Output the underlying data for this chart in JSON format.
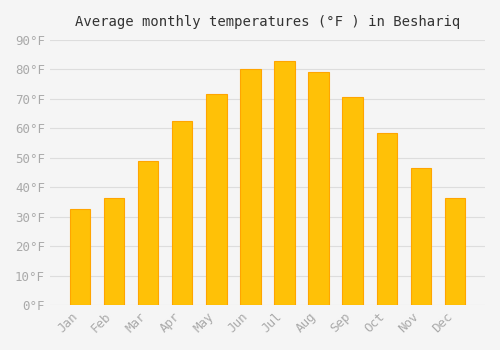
{
  "title": "Average monthly temperatures (°F ) in Beshariq",
  "months": [
    "Jan",
    "Feb",
    "Mar",
    "Apr",
    "May",
    "Jun",
    "Jul",
    "Aug",
    "Sep",
    "Oct",
    "Nov",
    "Dec"
  ],
  "values": [
    32.5,
    36.5,
    49.0,
    62.5,
    71.5,
    80.0,
    83.0,
    79.0,
    70.5,
    58.5,
    46.5,
    36.5
  ],
  "bar_color": "#FFC107",
  "bar_edge_color": "#FFA500",
  "background_color": "#F5F5F5",
  "grid_color": "#DDDDDD",
  "tick_label_color": "#AAAAAA",
  "title_color": "#333333",
  "ylim": [
    0,
    90
  ],
  "yticks": [
    0,
    10,
    20,
    30,
    40,
    50,
    60,
    70,
    80,
    90
  ]
}
